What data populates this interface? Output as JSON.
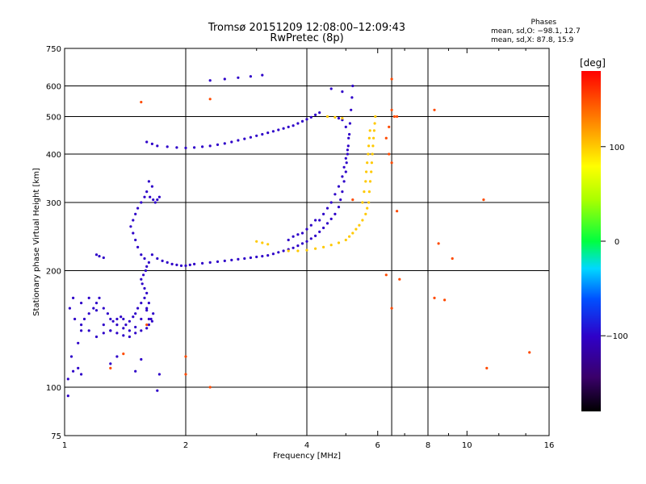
{
  "header": {
    "title_line1": "Tromsø 20151209 12:08:00–12:09:43",
    "title_line2": "RwPretec (8p)"
  },
  "phase_info": {
    "heading": "Phases",
    "line_o": "mean, sd,O: −98.1, 12.7",
    "line_x": "mean, sd,X:  87.8, 15.9"
  },
  "colorbar": {
    "unit_label": "[deg]",
    "ticks": [
      {
        "value": 100,
        "label": "100"
      },
      {
        "value": 0,
        "label": "0"
      },
      {
        "value": -100,
        "label": "−100"
      }
    ],
    "range": [
      -180,
      180
    ]
  },
  "chart_data": {
    "type": "scatter",
    "xlabel": "Frequency [MHz]",
    "ylabel": "Stationary phase Virtual Height [km]",
    "x_scale": "log",
    "y_scale": "log",
    "xlim": [
      1,
      16
    ],
    "ylim": [
      75,
      750
    ],
    "grid": true,
    "x_ticks": [
      {
        "value": 1,
        "label": "1"
      },
      {
        "value": 2,
        "label": "2"
      },
      {
        "value": 4,
        "label": "4"
      },
      {
        "value": 6,
        "label": "6"
      },
      {
        "value": 8,
        "label": "8"
      },
      {
        "value": 10,
        "label": "10"
      },
      {
        "value": 16,
        "label": "16"
      }
    ],
    "x_grid_values": [
      2,
      4,
      6.5,
      8
    ],
    "y_ticks": [
      {
        "value": 75,
        "label": "75"
      },
      {
        "value": 100,
        "label": "100"
      },
      {
        "value": 200,
        "label": "200"
      },
      {
        "value": 300,
        "label": "300"
      },
      {
        "value": 400,
        "label": "400"
      },
      {
        "value": 500,
        "label": "500"
      },
      {
        "value": 600,
        "label": "600"
      },
      {
        "value": 750,
        "label": "750"
      }
    ],
    "y_grid_values": [
      100,
      200,
      300,
      400,
      500,
      600
    ],
    "series": [
      {
        "trace": "o-mode E/F1 region",
        "phase_deg": -100,
        "points": [
          [
            1.02,
            105
          ],
          [
            1.05,
            110
          ],
          [
            1.08,
            112
          ],
          [
            1.1,
            108
          ],
          [
            1.04,
            120
          ],
          [
            1.08,
            130
          ],
          [
            1.1,
            140
          ],
          [
            1.12,
            150
          ],
          [
            1.15,
            155
          ],
          [
            1.18,
            160
          ],
          [
            1.2,
            165
          ],
          [
            1.22,
            170
          ],
          [
            1.25,
            160
          ],
          [
            1.28,
            155
          ],
          [
            1.3,
            150
          ],
          [
            1.32,
            148
          ],
          [
            1.35,
            150
          ],
          [
            1.38,
            152
          ],
          [
            1.4,
            150
          ],
          [
            1.42,
            145
          ],
          [
            1.45,
            148
          ],
          [
            1.48,
            152
          ],
          [
            1.5,
            155
          ],
          [
            1.52,
            160
          ],
          [
            1.55,
            165
          ],
          [
            1.58,
            170
          ],
          [
            1.6,
            160
          ],
          [
            1.62,
            150
          ],
          [
            1.65,
            148
          ],
          [
            1.15,
            170
          ],
          [
            1.2,
            158
          ],
          [
            1.25,
            145
          ],
          [
            1.3,
            140
          ],
          [
            1.35,
            145
          ],
          [
            1.4,
            142
          ],
          [
            1.45,
            140
          ],
          [
            1.5,
            143
          ],
          [
            1.55,
            150
          ],
          [
            1.6,
            158
          ],
          [
            1.1,
            165
          ],
          [
            1.05,
            170
          ],
          [
            1.03,
            160
          ],
          [
            1.06,
            150
          ],
          [
            1.1,
            145
          ],
          [
            1.15,
            140
          ],
          [
            1.2,
            135
          ],
          [
            1.25,
            138
          ],
          [
            1.3,
            140
          ],
          [
            1.35,
            138
          ],
          [
            1.4,
            136
          ],
          [
            1.45,
            135
          ],
          [
            1.5,
            138
          ],
          [
            1.55,
            140
          ],
          [
            1.6,
            142
          ],
          [
            1.62,
            145
          ],
          [
            1.64,
            150
          ],
          [
            1.66,
            155
          ],
          [
            1.62,
            165
          ],
          [
            1.6,
            175
          ],
          [
            1.58,
            180
          ],
          [
            1.56,
            185
          ],
          [
            1.55,
            190
          ],
          [
            1.57,
            195
          ],
          [
            1.59,
            200
          ],
          [
            1.6,
            205
          ],
          [
            1.62,
            210
          ],
          [
            1.58,
            215
          ],
          [
            1.55,
            220
          ],
          [
            1.52,
            230
          ],
          [
            1.5,
            240
          ],
          [
            1.48,
            250
          ],
          [
            1.46,
            260
          ],
          [
            1.48,
            270
          ],
          [
            1.5,
            280
          ],
          [
            1.52,
            290
          ],
          [
            1.55,
            300
          ],
          [
            1.58,
            310
          ],
          [
            1.6,
            320
          ],
          [
            1.63,
            310
          ],
          [
            1.66,
            305
          ],
          [
            1.68,
            300
          ],
          [
            1.65,
            330
          ],
          [
            1.62,
            340
          ],
          [
            1.7,
            305
          ],
          [
            1.72,
            310
          ],
          [
            1.2,
            220
          ],
          [
            1.22,
            218
          ],
          [
            1.25,
            216
          ],
          [
            1.7,
            98
          ],
          [
            1.72,
            108
          ],
          [
            1.3,
            115
          ],
          [
            1.35,
            120
          ],
          [
            1.02,
            95
          ],
          [
            1.5,
            110
          ],
          [
            1.55,
            118
          ]
        ]
      },
      {
        "trace": "o-mode F2 trace (lower)",
        "phase_deg": -100,
        "points": [
          [
            1.65,
            220
          ],
          [
            1.7,
            215
          ],
          [
            1.75,
            212
          ],
          [
            1.8,
            210
          ],
          [
            1.85,
            208
          ],
          [
            1.9,
            207
          ],
          [
            1.95,
            206
          ],
          [
            2.0,
            206
          ],
          [
            2.05,
            207
          ],
          [
            2.1,
            208
          ],
          [
            2.2,
            209
          ],
          [
            2.3,
            210
          ],
          [
            2.4,
            211
          ],
          [
            2.5,
            212
          ],
          [
            2.6,
            213
          ],
          [
            2.7,
            214
          ],
          [
            2.8,
            215
          ],
          [
            2.9,
            216
          ],
          [
            3.0,
            217
          ],
          [
            3.1,
            218
          ],
          [
            3.2,
            219
          ],
          [
            3.3,
            221
          ],
          [
            3.4,
            223
          ],
          [
            3.5,
            225
          ],
          [
            3.6,
            227
          ],
          [
            3.7,
            229
          ],
          [
            3.8,
            232
          ],
          [
            3.9,
            235
          ],
          [
            4.0,
            238
          ],
          [
            4.1,
            242
          ],
          [
            4.2,
            246
          ],
          [
            4.3,
            252
          ],
          [
            4.4,
            258
          ],
          [
            4.5,
            265
          ],
          [
            4.6,
            272
          ],
          [
            4.7,
            280
          ],
          [
            4.8,
            292
          ],
          [
            4.85,
            305
          ],
          [
            4.9,
            320
          ],
          [
            4.95,
            340
          ],
          [
            5.0,
            360
          ],
          [
            5.02,
            380
          ],
          [
            5.05,
            400
          ],
          [
            5.07,
            420
          ],
          [
            5.1,
            450
          ],
          [
            5.12,
            480
          ],
          [
            5.15,
            520
          ],
          [
            5.18,
            560
          ],
          [
            5.2,
            600
          ],
          [
            4.3,
            270
          ],
          [
            4.4,
            280
          ],
          [
            4.5,
            290
          ],
          [
            4.6,
            300
          ],
          [
            4.7,
            315
          ],
          [
            4.8,
            330
          ],
          [
            4.9,
            350
          ],
          [
            4.95,
            370
          ],
          [
            5.0,
            390
          ],
          [
            5.05,
            410
          ],
          [
            5.08,
            440
          ],
          [
            3.9,
            250
          ],
          [
            4.0,
            256
          ],
          [
            4.1,
            262
          ],
          [
            4.2,
            270
          ],
          [
            3.6,
            240
          ],
          [
            3.7,
            245
          ],
          [
            3.8,
            248
          ],
          [
            5.0,
            470
          ],
          [
            4.9,
            490
          ],
          [
            4.8,
            495
          ]
        ]
      },
      {
        "trace": "o-mode F2 trace (upper)",
        "phase_deg": -100,
        "points": [
          [
            1.6,
            430
          ],
          [
            1.65,
            425
          ],
          [
            1.7,
            420
          ],
          [
            1.8,
            418
          ],
          [
            1.9,
            416
          ],
          [
            2.0,
            415
          ],
          [
            2.1,
            416
          ],
          [
            2.2,
            418
          ],
          [
            2.3,
            420
          ],
          [
            2.4,
            423
          ],
          [
            2.5,
            426
          ],
          [
            2.6,
            430
          ],
          [
            2.7,
            434
          ],
          [
            2.8,
            438
          ],
          [
            2.9,
            442
          ],
          [
            3.0,
            446
          ],
          [
            3.1,
            450
          ],
          [
            3.2,
            454
          ],
          [
            3.3,
            458
          ],
          [
            3.4,
            462
          ],
          [
            3.5,
            466
          ],
          [
            3.6,
            470
          ],
          [
            3.7,
            474
          ],
          [
            3.8,
            480
          ],
          [
            3.9,
            486
          ],
          [
            4.0,
            492
          ],
          [
            4.1,
            498
          ],
          [
            4.2,
            505
          ],
          [
            4.3,
            512
          ],
          [
            2.3,
            620
          ],
          [
            2.5,
            625
          ],
          [
            2.7,
            630
          ],
          [
            2.9,
            635
          ],
          [
            3.1,
            640
          ],
          [
            4.9,
            580
          ],
          [
            4.6,
            590
          ]
        ]
      },
      {
        "trace": "x-mode F2 trace",
        "phase_deg": 100,
        "points": [
          [
            3.0,
            238
          ],
          [
            3.1,
            236
          ],
          [
            3.2,
            234
          ],
          [
            3.6,
            225
          ],
          [
            3.8,
            225
          ],
          [
            4.0,
            226
          ],
          [
            4.2,
            228
          ],
          [
            4.4,
            230
          ],
          [
            4.6,
            233
          ],
          [
            4.8,
            236
          ],
          [
            5.0,
            240
          ],
          [
            5.1,
            245
          ],
          [
            5.2,
            250
          ],
          [
            5.3,
            256
          ],
          [
            5.4,
            262
          ],
          [
            5.5,
            270
          ],
          [
            5.6,
            280
          ],
          [
            5.65,
            290
          ],
          [
            5.7,
            300
          ],
          [
            5.72,
            320
          ],
          [
            5.75,
            340
          ],
          [
            5.78,
            360
          ],
          [
            5.8,
            380
          ],
          [
            5.82,
            400
          ],
          [
            5.84,
            420
          ],
          [
            5.86,
            440
          ],
          [
            5.88,
            460
          ],
          [
            5.9,
            480
          ],
          [
            5.92,
            500
          ],
          [
            5.5,
            300
          ],
          [
            5.55,
            320
          ],
          [
            5.6,
            340
          ],
          [
            5.62,
            360
          ],
          [
            5.65,
            380
          ],
          [
            5.68,
            400
          ],
          [
            5.7,
            420
          ],
          [
            5.72,
            440
          ],
          [
            5.74,
            460
          ],
          [
            4.5,
            500
          ],
          [
            4.7,
            498
          ],
          [
            4.9,
            495
          ]
        ]
      },
      {
        "trace": "scattered echoes",
        "phase_deg": 150,
        "points": [
          [
            6.4,
            470
          ],
          [
            6.5,
            520
          ],
          [
            6.7,
            500
          ],
          [
            6.3,
            440
          ],
          [
            6.4,
            400
          ],
          [
            6.5,
            380
          ],
          [
            6.6,
            500
          ],
          [
            6.7,
            285
          ],
          [
            6.5,
            160
          ],
          [
            8.3,
            520
          ],
          [
            8.5,
            235
          ],
          [
            9.2,
            215
          ],
          [
            11.0,
            305
          ],
          [
            11.2,
            112
          ],
          [
            6.5,
            625
          ],
          [
            1.55,
            545
          ],
          [
            2.3,
            555
          ],
          [
            5.2,
            305
          ],
          [
            6.3,
            195
          ],
          [
            6.8,
            190
          ],
          [
            8.3,
            170
          ],
          [
            8.8,
            168
          ],
          [
            14.3,
            123
          ],
          [
            1.6,
            145
          ],
          [
            2.0,
            120
          ],
          [
            2.0,
            108
          ],
          [
            2.3,
            100
          ],
          [
            1.3,
            112
          ],
          [
            1.4,
            122
          ]
        ]
      }
    ]
  }
}
